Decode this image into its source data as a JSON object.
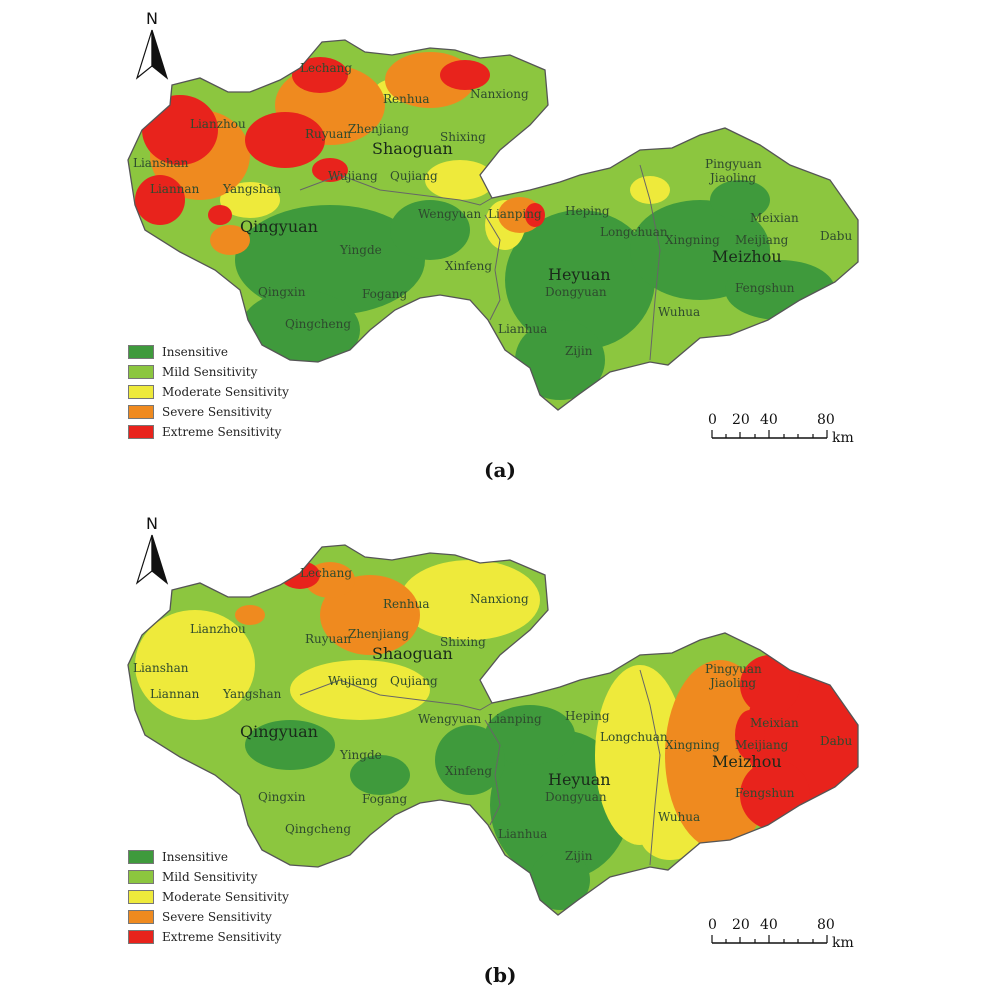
{
  "legend": {
    "items": [
      {
        "label": "Insensitive",
        "color": "#3f9a3c"
      },
      {
        "label": "Mild Sensitivity",
        "color": "#8cc63f"
      },
      {
        "label": "Moderate Sensitivity",
        "color": "#eeea3b"
      },
      {
        "label": "Severe Sensitivity",
        "color": "#ef8a1f"
      },
      {
        "label": "Extreme Sensitivity",
        "color": "#e8231c"
      }
    ]
  },
  "north_label": "N",
  "scale": {
    "ticks": [
      "0",
      "20",
      "40",
      "80"
    ],
    "unit": "km"
  },
  "cities": {
    "shaoguan": "Shaoguan",
    "qingyuan": "Qingyuan",
    "heyuan": "Heyuan",
    "meizhou": "Meizhou"
  },
  "counties": {
    "lechang": "Lechang",
    "renhua": "Renhua",
    "nanxiong": "Nanxiong",
    "lianzhou": "Lianzhou",
    "ruyuan": "Ruyuan",
    "zhenjiang": "Zhenjiang",
    "shixing": "Shixing",
    "lianshan": "Lianshan",
    "liannan": "Liannan",
    "yangshan": "Yangshan",
    "wujiang": "Wujiang",
    "qujiang": "Qujiang",
    "wengyuan": "Wengyuan",
    "lianping": "Lianping",
    "heping": "Heping",
    "pingyuan": "Pingyuan",
    "jiaoling": "Jiaoling",
    "meixian": "Meixian",
    "meijiang": "Meijiang",
    "dabu": "Dabu",
    "longchuan": "Longchuan",
    "xingning": "Xingning",
    "yingde": "Yingde",
    "xinfeng": "Xinfeng",
    "qingxin": "Qingxin",
    "fogang": "Fogang",
    "dongyuan": "Dongyuan",
    "fengshun": "Fengshun",
    "wuhua": "Wuhua",
    "zijin": "Zijin",
    "lianhua": "Lianhua",
    "qingcheng": "Qingcheng"
  },
  "panels": [
    {
      "id": "a",
      "label": "(a)"
    },
    {
      "id": "b",
      "label": "(b)"
    }
  ]
}
